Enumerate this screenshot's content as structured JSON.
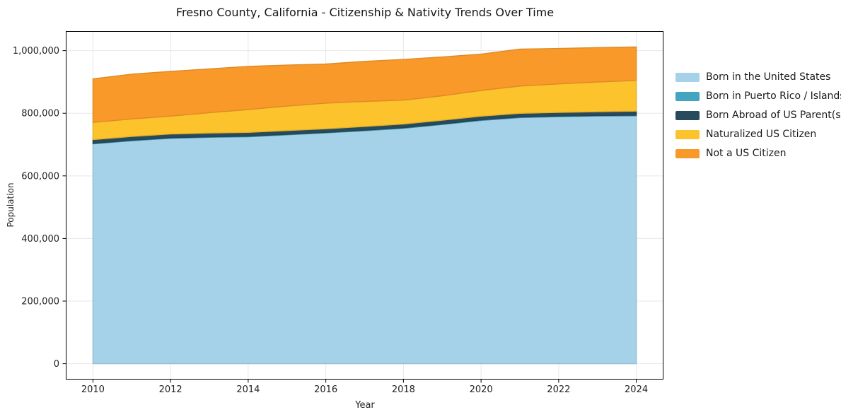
{
  "chart_data": {
    "type": "area",
    "stacked": true,
    "title": "Fresno County, California - Citizenship & Nativity Trends Over Time",
    "xlabel": "Year",
    "ylabel": "Population",
    "x": [
      2010,
      2011,
      2012,
      2013,
      2014,
      2015,
      2016,
      2017,
      2018,
      2019,
      2020,
      2021,
      2022,
      2023,
      2024
    ],
    "series": [
      {
        "name": "Born in the United States",
        "color": "#a5d2e8",
        "values": [
          702000,
          712000,
          720000,
          723000,
          725000,
          731000,
          737000,
          744000,
          752000,
          764000,
          777000,
          786000,
          789000,
          791000,
          792000
        ]
      },
      {
        "name": "Born in Puerto Rico / Islands",
        "color": "#43a5c1",
        "values": [
          1800,
          1800,
          1800,
          1800,
          1800,
          1800,
          1800,
          1800,
          1800,
          1800,
          1800,
          1800,
          1800,
          1800,
          1800
        ]
      },
      {
        "name": "Born Abroad of US Parent(s)",
        "color": "#274b5d",
        "values": [
          12000,
          12000,
          12000,
          12000,
          12000,
          12000,
          11500,
          12000,
          12000,
          12000,
          12000,
          12000,
          12000,
          12000,
          13000
        ]
      },
      {
        "name": "Naturalized US Citizen",
        "color": "#fcc32d",
        "values": [
          55000,
          56000,
          57000,
          65000,
          73000,
          78000,
          82000,
          80000,
          76000,
          78000,
          82000,
          87000,
          91000,
          95000,
          98000
        ]
      },
      {
        "name": "Not a US Citizen",
        "color": "#f8992a",
        "values": [
          139000,
          143000,
          143000,
          140000,
          138000,
          131000,
          125000,
          128000,
          130000,
          124000,
          116000,
          118000,
          113000,
          110000,
          107000
        ]
      }
    ],
    "xticks": {
      "values": [
        2010,
        2012,
        2014,
        2016,
        2018,
        2020,
        2022,
        2024
      ],
      "labels": [
        "2010",
        "2012",
        "2014",
        "2016",
        "2018",
        "2020",
        "2022",
        "2024"
      ]
    },
    "yticks": {
      "values": [
        0,
        200000,
        400000,
        600000,
        800000,
        1000000
      ],
      "labels": [
        "0",
        "200,000",
        "400,000",
        "600,000",
        "800,000",
        "1,000,000"
      ]
    },
    "xlim": [
      2009.3,
      2024.7
    ],
    "ylim": [
      -50600,
      1062400
    ],
    "grid": true,
    "legend_position": "right"
  }
}
